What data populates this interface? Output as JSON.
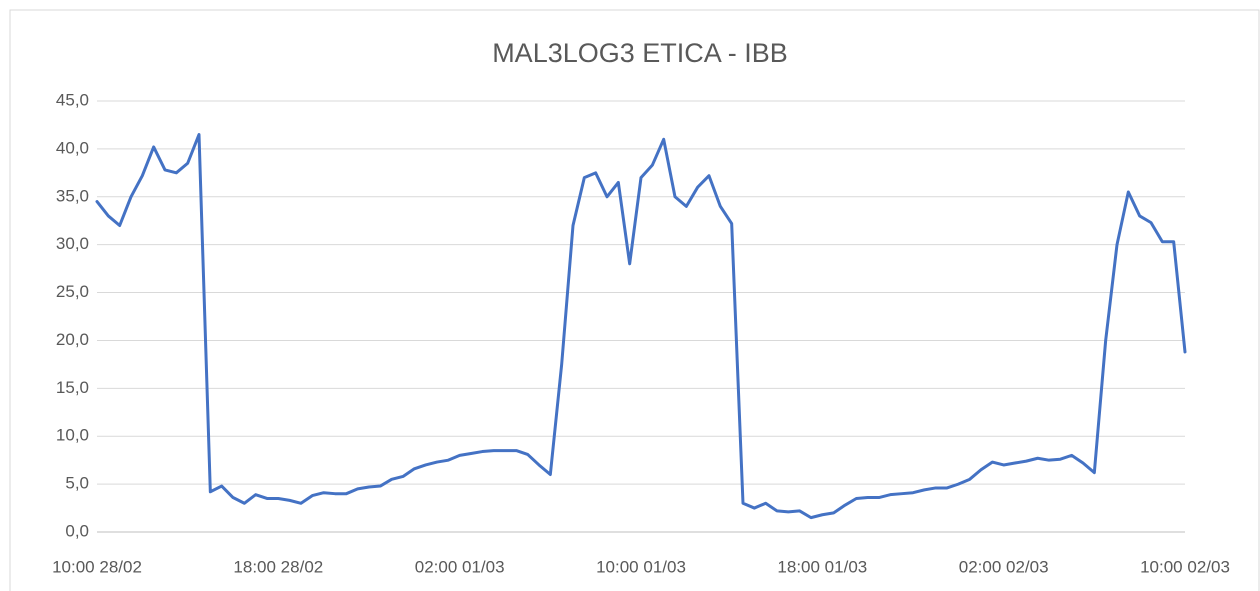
{
  "chart_data": {
    "type": "line",
    "title": "MAL3LOG3 ETICA - IBB",
    "categories": [
      "10:00 28/02",
      null,
      null,
      null,
      null,
      null,
      null,
      null,
      null,
      null,
      null,
      null,
      null,
      null,
      null,
      null,
      "18:00 28/02",
      null,
      null,
      null,
      null,
      null,
      null,
      null,
      null,
      null,
      null,
      null,
      null,
      null,
      null,
      null,
      "02:00 01/03",
      null,
      null,
      null,
      null,
      null,
      null,
      null,
      null,
      null,
      null,
      null,
      null,
      null,
      null,
      null,
      "10:00 01/03",
      null,
      null,
      null,
      null,
      null,
      null,
      null,
      null,
      null,
      null,
      null,
      null,
      null,
      null,
      null,
      "18:00 01/03",
      null,
      null,
      null,
      null,
      null,
      null,
      null,
      null,
      null,
      null,
      null,
      null,
      null,
      null,
      null,
      "02:00 02/03",
      null,
      null,
      null,
      null,
      null,
      null,
      null,
      null,
      null,
      null,
      null,
      null,
      null,
      null,
      null,
      "10:00 02/03"
    ],
    "values": [
      34.5,
      33,
      32,
      35,
      37.2,
      40.2,
      37.8,
      37.5,
      38.5,
      41.5,
      4.2,
      4.8,
      3.6,
      3.0,
      3.9,
      3.5,
      3.5,
      3.3,
      3.0,
      3.8,
      4.1,
      4.0,
      4.0,
      4.5,
      4.7,
      4.8,
      5.5,
      5.8,
      6.6,
      7.0,
      7.3,
      7.5,
      8.0,
      8.2,
      8.4,
      8.5,
      8.5,
      8.5,
      8.1,
      7.0,
      6.0,
      17.5,
      32,
      37,
      37.5,
      35,
      36.5,
      28,
      37,
      38.3,
      41,
      35,
      34,
      36,
      37.2,
      34,
      32.2,
      3.0,
      2.5,
      3.0,
      2.2,
      2.1,
      2.2,
      1.5,
      1.8,
      2.0,
      2.8,
      3.5,
      3.6,
      3.6,
      3.9,
      4.0,
      4.1,
      4.4,
      4.6,
      4.6,
      5.0,
      5.5,
      6.5,
      7.3,
      7.0,
      7.2,
      7.4,
      7.7,
      7.5,
      7.6,
      8.0,
      7.2,
      6.2,
      20,
      30,
      35.5,
      33,
      32.3,
      30.3,
      30.3,
      18.8
    ],
    "color": "#4472c4",
    "ylim": [
      0,
      45
    ],
    "yticks": [
      {
        "value": 0,
        "label": "0,0"
      },
      {
        "value": 5,
        "label": "5,0"
      },
      {
        "value": 10,
        "label": "10,0"
      },
      {
        "value": 15,
        "label": "15,0"
      },
      {
        "value": 20,
        "label": "20,0"
      },
      {
        "value": 25,
        "label": "25,0"
      },
      {
        "value": 30,
        "label": "30,0"
      },
      {
        "value": 35,
        "label": "35,0"
      },
      {
        "value": 40,
        "label": "40,0"
      },
      {
        "value": 45,
        "label": "45,0"
      }
    ],
    "grid": true
  }
}
